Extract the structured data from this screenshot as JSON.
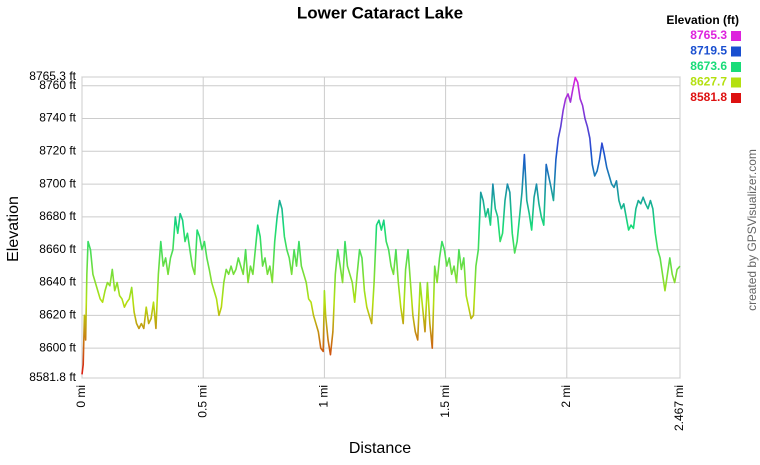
{
  "chart_data": {
    "type": "line",
    "title": "Lower Cataract Lake",
    "xlabel": "Distance",
    "ylabel": "Elevation",
    "credit": "created by GPSVisualizer.com",
    "legend": {
      "title": "Elevation (ft)",
      "stops": [
        {
          "value": 8765.3,
          "color": "#dd22dd"
        },
        {
          "value": 8719.5,
          "color": "#1a4fd0"
        },
        {
          "value": 8673.6,
          "color": "#18dc78"
        },
        {
          "value": 8627.7,
          "color": "#b4e010"
        },
        {
          "value": 8581.8,
          "color": "#dd1111"
        }
      ]
    },
    "xlim": [
      0,
      2.467
    ],
    "xticks": [
      {
        "value": 0,
        "label": "0 mi"
      },
      {
        "value": 0.5,
        "label": "0.5 mi"
      },
      {
        "value": 1,
        "label": "1 mi"
      },
      {
        "value": 1.5,
        "label": "1.5 mi"
      },
      {
        "value": 2,
        "label": "2 mi"
      },
      {
        "value": 2.467,
        "label": "2.467 mi"
      }
    ],
    "ylim": [
      8581.8,
      8765.3
    ],
    "yticks": [
      {
        "value": 8581.8,
        "label": "8581.8 ft"
      },
      {
        "value": 8600,
        "label": "8600 ft"
      },
      {
        "value": 8620,
        "label": "8620 ft"
      },
      {
        "value": 8640,
        "label": "8640 ft"
      },
      {
        "value": 8660,
        "label": "8660 ft"
      },
      {
        "value": 8680,
        "label": "8680 ft"
      },
      {
        "value": 8700,
        "label": "8700 ft"
      },
      {
        "value": 8720,
        "label": "8720 ft"
      },
      {
        "value": 8740,
        "label": "8740 ft"
      },
      {
        "value": 8760,
        "label": "8760 ft"
      },
      {
        "value": 8765.3,
        "label": "8765.3 ft"
      }
    ],
    "grid": true,
    "x": [
      0,
      0.005,
      0.01,
      0.015,
      0.02,
      0.025,
      0.035,
      0.045,
      0.055,
      0.065,
      0.075,
      0.085,
      0.095,
      0.105,
      0.115,
      0.125,
      0.135,
      0.145,
      0.155,
      0.165,
      0.175,
      0.185,
      0.195,
      0.205,
      0.215,
      0.225,
      0.235,
      0.245,
      0.255,
      0.265,
      0.275,
      0.285,
      0.295,
      0.305,
      0.315,
      0.325,
      0.335,
      0.345,
      0.355,
      0.365,
      0.375,
      0.385,
      0.395,
      0.405,
      0.415,
      0.425,
      0.435,
      0.445,
      0.455,
      0.465,
      0.475,
      0.485,
      0.495,
      0.505,
      0.515,
      0.525,
      0.535,
      0.545,
      0.555,
      0.565,
      0.575,
      0.585,
      0.595,
      0.605,
      0.615,
      0.625,
      0.635,
      0.645,
      0.655,
      0.665,
      0.675,
      0.685,
      0.695,
      0.705,
      0.715,
      0.725,
      0.735,
      0.745,
      0.755,
      0.765,
      0.775,
      0.785,
      0.795,
      0.805,
      0.815,
      0.825,
      0.835,
      0.845,
      0.855,
      0.865,
      0.875,
      0.885,
      0.895,
      0.905,
      0.915,
      0.925,
      0.935,
      0.945,
      0.955,
      0.965,
      0.975,
      0.985,
      0.995,
      1,
      1.005,
      1.015,
      1.025,
      1.035,
      1.045,
      1.055,
      1.065,
      1.075,
      1.085,
      1.095,
      1.105,
      1.115,
      1.125,
      1.135,
      1.145,
      1.155,
      1.165,
      1.175,
      1.185,
      1.195,
      1.205,
      1.215,
      1.225,
      1.235,
      1.245,
      1.255,
      1.265,
      1.275,
      1.285,
      1.295,
      1.305,
      1.315,
      1.325,
      1.335,
      1.345,
      1.355,
      1.365,
      1.375,
      1.385,
      1.395,
      1.405,
      1.415,
      1.425,
      1.435,
      1.445,
      1.455,
      1.465,
      1.475,
      1.485,
      1.495,
      1.505,
      1.515,
      1.525,
      1.535,
      1.545,
      1.555,
      1.565,
      1.575,
      1.585,
      1.595,
      1.605,
      1.615,
      1.625,
      1.635,
      1.645,
      1.655,
      1.665,
      1.675,
      1.685,
      1.695,
      1.705,
      1.715,
      1.725,
      1.735,
      1.745,
      1.755,
      1.765,
      1.775,
      1.785,
      1.795,
      1.805,
      1.815,
      1.825,
      1.835,
      1.845,
      1.855,
      1.865,
      1.875,
      1.885,
      1.895,
      1.905,
      1.915,
      1.925,
      1.935,
      1.945,
      1.955,
      1.965,
      1.975,
      1.985,
      1.995,
      2.005,
      2.015,
      2.025,
      2.035,
      2.045,
      2.055,
      2.065,
      2.075,
      2.085,
      2.095,
      2.105,
      2.115,
      2.125,
      2.135,
      2.145,
      2.155,
      2.165,
      2.175,
      2.185,
      2.195,
      2.205,
      2.215,
      2.225,
      2.235,
      2.245,
      2.255,
      2.265,
      2.275,
      2.285,
      2.295,
      2.305,
      2.315,
      2.325,
      2.335,
      2.345,
      2.355,
      2.365,
      2.375,
      2.385,
      2.395,
      2.405,
      2.415,
      2.425,
      2.435,
      2.445,
      2.455,
      2.467
    ],
    "series": [
      {
        "values": [
          8584,
          8590,
          8620,
          8605,
          8645,
          8665,
          8660,
          8645,
          8640,
          8635,
          8630,
          8628,
          8635,
          8640,
          8638,
          8648,
          8635,
          8640,
          8632,
          8630,
          8625,
          8628,
          8630,
          8637,
          8622,
          8615,
          8612,
          8615,
          8612,
          8625,
          8615,
          8618,
          8628,
          8612,
          8645,
          8665,
          8650,
          8655,
          8645,
          8655,
          8660,
          8680,
          8670,
          8682,
          8678,
          8665,
          8670,
          8660,
          8650,
          8645,
          8672,
          8668,
          8660,
          8665,
          8655,
          8648,
          8640,
          8635,
          8630,
          8620,
          8625,
          8640,
          8648,
          8645,
          8650,
          8645,
          8648,
          8655,
          8650,
          8645,
          8660,
          8640,
          8650,
          8645,
          8660,
          8675,
          8668,
          8650,
          8655,
          8645,
          8650,
          8640,
          8665,
          8680,
          8690,
          8685,
          8668,
          8660,
          8655,
          8645,
          8660,
          8650,
          8665,
          8650,
          8645,
          8640,
          8630,
          8628,
          8620,
          8615,
          8610,
          8600,
          8598,
          8635,
          8620,
          8605,
          8596,
          8610,
          8645,
          8660,
          8650,
          8640,
          8665,
          8650,
          8645,
          8640,
          8628,
          8645,
          8660,
          8655,
          8635,
          8625,
          8620,
          8615,
          8640,
          8675,
          8678,
          8672,
          8678,
          8665,
          8660,
          8650,
          8645,
          8660,
          8640,
          8625,
          8615,
          8648,
          8660,
          8640,
          8620,
          8610,
          8605,
          8640,
          8625,
          8610,
          8640,
          8615,
          8600,
          8650,
          8640,
          8655,
          8665,
          8660,
          8650,
          8655,
          8645,
          8650,
          8640,
          8660,
          8648,
          8655,
          8632,
          8625,
          8618,
          8620,
          8650,
          8660,
          8695,
          8690,
          8680,
          8685,
          8675,
          8700,
          8685,
          8680,
          8665,
          8670,
          8690,
          8700,
          8695,
          8670,
          8658,
          8665,
          8680,
          8695,
          8718,
          8690,
          8682,
          8672,
          8692,
          8700,
          8688,
          8680,
          8675,
          8712,
          8705,
          8698,
          8690,
          8715,
          8728,
          8735,
          8745,
          8752,
          8755,
          8750,
          8758,
          8765,
          8762,
          8752,
          8748,
          8740,
          8735,
          8728,
          8712,
          8705,
          8708,
          8715,
          8725,
          8718,
          8710,
          8705,
          8700,
          8698,
          8702,
          8690,
          8685,
          8688,
          8680,
          8672,
          8675,
          8673,
          8685,
          8690,
          8688,
          8692,
          8688,
          8685,
          8690,
          8685,
          8670,
          8660,
          8655,
          8645,
          8635,
          8645,
          8655,
          8645,
          8640,
          8648,
          8650
        ]
      }
    ]
  }
}
